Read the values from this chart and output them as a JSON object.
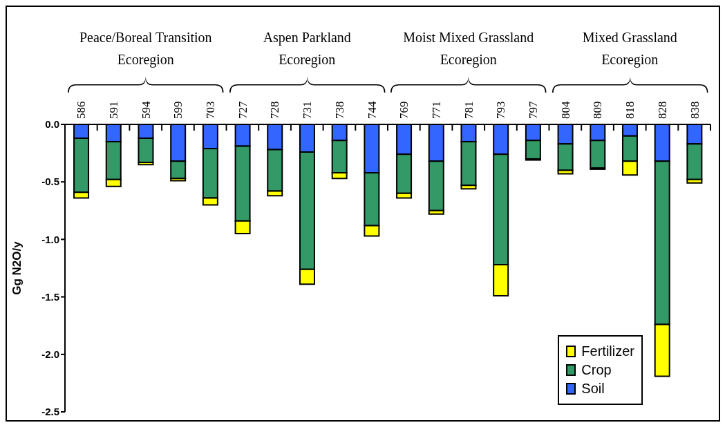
{
  "chart_data": {
    "type": "bar",
    "stacked": true,
    "ylabel": "Gg N2O/y",
    "categories": [
      "586",
      "591",
      "594",
      "599",
      "703",
      "727",
      "728",
      "731",
      "738",
      "744",
      "769",
      "771",
      "781",
      "793",
      "797",
      "804",
      "809",
      "818",
      "828",
      "838"
    ],
    "series": [
      {
        "name": "Soil",
        "color": "#3366ff",
        "values": [
          -0.12,
          -0.15,
          -0.12,
          -0.32,
          -0.21,
          -0.19,
          -0.22,
          -0.24,
          -0.14,
          -0.42,
          -0.26,
          -0.32,
          -0.15,
          -0.26,
          -0.14,
          -0.17,
          -0.14,
          -0.1,
          -0.32,
          -0.17
        ]
      },
      {
        "name": "Crop",
        "color": "#339966",
        "values": [
          -0.47,
          -0.33,
          -0.21,
          -0.15,
          -0.43,
          -0.65,
          -0.36,
          -1.02,
          -0.28,
          -0.46,
          -0.34,
          -0.43,
          -0.38,
          -0.96,
          -0.16,
          -0.23,
          -0.24,
          -0.22,
          -1.42,
          -0.31
        ]
      },
      {
        "name": "Fertilizer",
        "color": "#ffff00",
        "values": [
          -0.05,
          -0.06,
          -0.02,
          -0.02,
          -0.06,
          -0.11,
          -0.04,
          -0.13,
          -0.05,
          -0.09,
          -0.04,
          -0.03,
          -0.03,
          -0.27,
          -0.01,
          -0.03,
          -0.01,
          -0.12,
          -0.45,
          -0.03
        ]
      }
    ],
    "ylim": [
      -2.5,
      0
    ],
    "yticks": [
      {
        "value": 0,
        "label": "0.0"
      },
      {
        "value": -0.5,
        "label": "-0.5"
      },
      {
        "value": -1,
        "label": "-1.0"
      },
      {
        "value": -1.5,
        "label": "-1.5"
      },
      {
        "value": -2,
        "label": "-2.0"
      },
      {
        "value": -2.5,
        "label": "-2.5"
      }
    ],
    "annotations": [
      "Peace/Boreal Transition Ecoregion",
      "Aspen Parkland Ecoregion",
      "Moist Mixed Grassland Ecoregion",
      "Mixed Grassland Ecoregion"
    ],
    "legend": "bottom right",
    "grid": false
  }
}
